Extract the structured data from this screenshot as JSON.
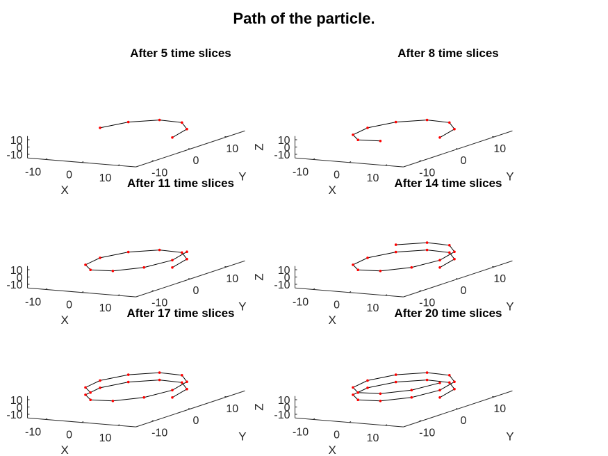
{
  "figure": {
    "title": "Path of the particle."
  },
  "colors": {
    "line": "#000000",
    "marker": "#ff0000",
    "axis": "#262626"
  },
  "axes_style": {
    "x_ticks": [
      "-10",
      "0",
      "10"
    ],
    "y_ticks": [
      "-10",
      "0",
      "10"
    ],
    "z_ticks": [
      "10",
      "0",
      "-10"
    ],
    "xlabel": "X",
    "ylabel": "Y",
    "zlabel": "Z"
  },
  "chart_data": [
    {
      "type": "line",
      "projection": "3d",
      "title": "After 5 time slices",
      "xlabel": "X",
      "ylabel": "Y",
      "zlabel": "Z",
      "xlim": [
        -15,
        15
      ],
      "ylim": [
        -15,
        15
      ],
      "zlim": [
        -15,
        15
      ],
      "grid": false,
      "points": [
        [
          10.0,
          0,
          0
        ],
        [
          8.1,
          5.9,
          1
        ],
        [
          3.1,
          9.5,
          2
        ],
        [
          -3.1,
          9.5,
          3
        ],
        [
          -8.1,
          5.9,
          4
        ],
        [
          -10.0,
          0,
          5
        ]
      ]
    },
    {
      "type": "line",
      "projection": "3d",
      "title": "After 8 time slices",
      "xlabel": "X",
      "ylabel": "Y",
      "zlabel": "Z",
      "xlim": [
        -15,
        15
      ],
      "ylim": [
        -15,
        15
      ],
      "zlim": [
        -15,
        15
      ],
      "grid": false,
      "points": [
        [
          10.0,
          0,
          0
        ],
        [
          8.1,
          5.9,
          1
        ],
        [
          3.1,
          9.5,
          2
        ],
        [
          -3.1,
          9.5,
          3
        ],
        [
          -8.1,
          5.9,
          4
        ],
        [
          -10.0,
          0,
          5
        ],
        [
          -8.1,
          -5.9,
          6
        ],
        [
          -3.1,
          -9.5,
          7
        ],
        [
          3.1,
          -9.5,
          8
        ]
      ]
    },
    {
      "type": "line",
      "projection": "3d",
      "title": "After 11 time slices",
      "xlabel": "X",
      "ylabel": "Y",
      "zlabel": "Z",
      "xlim": [
        -15,
        15
      ],
      "ylim": [
        -15,
        15
      ],
      "zlim": [
        -15,
        15
      ],
      "grid": false,
      "points": [
        [
          10.0,
          0,
          0
        ],
        [
          8.1,
          5.9,
          1
        ],
        [
          3.1,
          9.5,
          2
        ],
        [
          -3.1,
          9.5,
          3
        ],
        [
          -8.1,
          5.9,
          4
        ],
        [
          -10.0,
          0,
          5
        ],
        [
          -8.1,
          -5.9,
          6
        ],
        [
          -3.1,
          -9.5,
          7
        ],
        [
          3.1,
          -9.5,
          8
        ],
        [
          8.1,
          -5.9,
          9
        ],
        [
          10.0,
          0,
          10
        ],
        [
          8.1,
          5.9,
          11
        ]
      ]
    },
    {
      "type": "line",
      "projection": "3d",
      "title": "After 14 time slices",
      "xlabel": "X",
      "ylabel": "Y",
      "zlabel": "Z",
      "xlim": [
        -15,
        15
      ],
      "ylim": [
        -15,
        15
      ],
      "zlim": [
        -15,
        15
      ],
      "grid": false,
      "points": [
        [
          10.0,
          0,
          0
        ],
        [
          8.1,
          5.9,
          1
        ],
        [
          3.1,
          9.5,
          2
        ],
        [
          -3.1,
          9.5,
          3
        ],
        [
          -8.1,
          5.9,
          4
        ],
        [
          -10.0,
          0,
          5
        ],
        [
          -8.1,
          -5.9,
          6
        ],
        [
          -3.1,
          -9.5,
          7
        ],
        [
          3.1,
          -9.5,
          8
        ],
        [
          8.1,
          -5.9,
          9
        ],
        [
          10.0,
          0,
          10
        ],
        [
          8.1,
          5.9,
          11
        ],
        [
          3.1,
          9.5,
          12
        ],
        [
          -3.1,
          9.5,
          13
        ],
        [
          -8.1,
          5.9,
          14
        ]
      ]
    },
    {
      "type": "line",
      "projection": "3d",
      "title": "After 17 time slices",
      "xlabel": "X",
      "ylabel": "Y",
      "zlabel": "Z",
      "xlim": [
        -15,
        15
      ],
      "ylim": [
        -15,
        15
      ],
      "zlim": [
        -15,
        15
      ],
      "grid": false,
      "points": [
        [
          10.0,
          0,
          0
        ],
        [
          8.1,
          5.9,
          1
        ],
        [
          3.1,
          9.5,
          2
        ],
        [
          -3.1,
          9.5,
          3
        ],
        [
          -8.1,
          5.9,
          4
        ],
        [
          -10.0,
          0,
          5
        ],
        [
          -8.1,
          -5.9,
          6
        ],
        [
          -3.1,
          -9.5,
          7
        ],
        [
          3.1,
          -9.5,
          8
        ],
        [
          8.1,
          -5.9,
          9
        ],
        [
          10.0,
          0,
          10
        ],
        [
          8.1,
          5.9,
          11
        ],
        [
          3.1,
          9.5,
          12
        ],
        [
          -3.1,
          9.5,
          13
        ],
        [
          -8.1,
          5.9,
          14
        ],
        [
          -10.0,
          0,
          15
        ],
        [
          -8.1,
          -5.9,
          16
        ],
        [
          -3.1,
          -9.5,
          17
        ]
      ]
    },
    {
      "type": "line",
      "projection": "3d",
      "title": "After 20 time slices",
      "xlabel": "X",
      "ylabel": "Y",
      "zlabel": "Z",
      "xlim": [
        -15,
        15
      ],
      "ylim": [
        -15,
        15
      ],
      "zlim": [
        -15,
        15
      ],
      "grid": false,
      "points": [
        [
          10.0,
          0,
          0
        ],
        [
          8.1,
          5.9,
          1
        ],
        [
          3.1,
          9.5,
          2
        ],
        [
          -3.1,
          9.5,
          3
        ],
        [
          -8.1,
          5.9,
          4
        ],
        [
          -10.0,
          0,
          5
        ],
        [
          -8.1,
          -5.9,
          6
        ],
        [
          -3.1,
          -9.5,
          7
        ],
        [
          3.1,
          -9.5,
          8
        ],
        [
          8.1,
          -5.9,
          9
        ],
        [
          10.0,
          0,
          10
        ],
        [
          8.1,
          5.9,
          11
        ],
        [
          3.1,
          9.5,
          12
        ],
        [
          -3.1,
          9.5,
          13
        ],
        [
          -8.1,
          5.9,
          14
        ],
        [
          -10.0,
          0,
          15
        ],
        [
          -8.1,
          -5.9,
          16
        ],
        [
          -3.1,
          -9.5,
          17
        ],
        [
          3.1,
          -9.5,
          18
        ],
        [
          8.1,
          -5.9,
          19
        ],
        [
          10.0,
          0,
          20
        ]
      ]
    }
  ]
}
